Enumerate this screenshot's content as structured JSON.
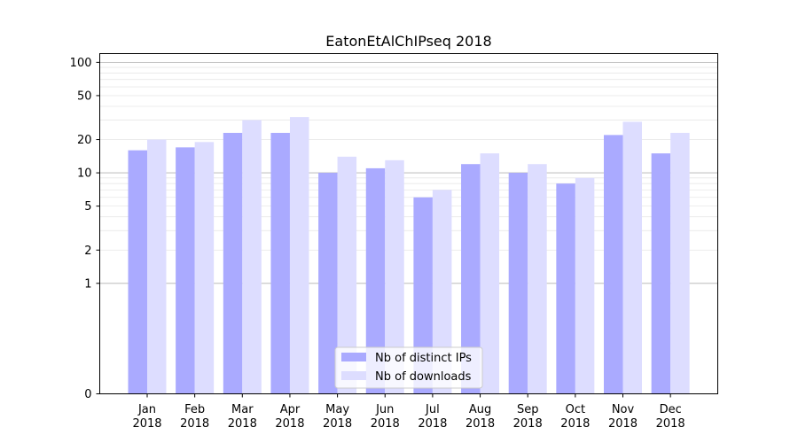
{
  "chart_data": {
    "type": "bar",
    "title": "EatonEtAlChIPseq 2018",
    "xlabel": "",
    "ylabel": "",
    "y_scale": "symlog",
    "ylim": [
      0,
      120
    ],
    "categories": [
      {
        "month": "Jan",
        "year": "2018"
      },
      {
        "month": "Feb",
        "year": "2018"
      },
      {
        "month": "Mar",
        "year": "2018"
      },
      {
        "month": "Apr",
        "year": "2018"
      },
      {
        "month": "May",
        "year": "2018"
      },
      {
        "month": "Jun",
        "year": "2018"
      },
      {
        "month": "Jul",
        "year": "2018"
      },
      {
        "month": "Aug",
        "year": "2018"
      },
      {
        "month": "Sep",
        "year": "2018"
      },
      {
        "month": "Oct",
        "year": "2018"
      },
      {
        "month": "Nov",
        "year": "2018"
      },
      {
        "month": "Dec",
        "year": "2018"
      }
    ],
    "series": [
      {
        "name": "Nb of distinct IPs",
        "color": "#aaaaff",
        "values": [
          16,
          17,
          23,
          23,
          10,
          11,
          6,
          12,
          10,
          8,
          22,
          15
        ]
      },
      {
        "name": "Nb of downloads",
        "color": "#ddddff",
        "values": [
          20,
          19,
          30,
          32,
          14,
          13,
          7,
          15,
          12,
          9,
          29,
          23
        ]
      }
    ],
    "y_ticks": [
      0,
      1,
      2,
      5,
      10,
      20,
      50,
      100
    ],
    "grid": "horizontal",
    "legend_position": "bottom-center"
  }
}
